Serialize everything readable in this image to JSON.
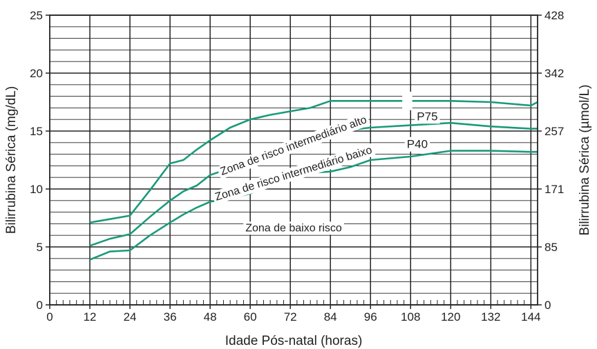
{
  "chart_data": {
    "type": "line",
    "title": "",
    "xlabel": "Idade Pós-natal (horas)",
    "ylabel": "Bilirrubina Sérica (mg/dL)",
    "ylabel_right": "Bilirrubina Sérica (µmol/L)",
    "xlim": [
      0,
      146
    ],
    "ylim": [
      0,
      25
    ],
    "x_ticks": [
      0,
      12,
      24,
      36,
      48,
      60,
      72,
      84,
      96,
      108,
      120,
      132,
      144
    ],
    "x_tick_labels": [
      "0",
      "12",
      "24",
      "36",
      "48",
      "60",
      "72",
      "84",
      "96",
      "108",
      "120",
      "132",
      "144"
    ],
    "y_ticks": [
      0,
      5,
      10,
      15,
      20,
      25
    ],
    "y_tick_labels": [
      "0",
      "5",
      "10",
      "15",
      "20",
      "25"
    ],
    "y_right_ticks": [
      0,
      5,
      10,
      15,
      20,
      25
    ],
    "y_right_tick_labels": [
      "0",
      "85",
      "171",
      "257",
      "342",
      "428"
    ],
    "grid": true,
    "line_color": "#1a9a7a",
    "series": [
      {
        "x": [
          12,
          18,
          24,
          30,
          36,
          40,
          44,
          48,
          54,
          60,
          66,
          72,
          78,
          84,
          90,
          96,
          108,
          120,
          132,
          144,
          146
        ],
        "y": [
          7.1,
          7.4,
          7.7,
          9.9,
          12.2,
          12.5,
          13.4,
          14.2,
          15.3,
          16.0,
          16.4,
          16.7,
          17.0,
          17.6,
          17.6,
          17.6,
          17.6,
          17.6,
          17.5,
          17.2,
          17.5
        ]
      },
      {
        "name": "P75",
        "x": [
          12,
          18,
          24,
          30,
          36,
          40,
          44,
          48,
          54,
          60,
          66,
          72,
          78,
          84,
          90,
          96,
          108,
          120,
          132,
          144,
          146
        ],
        "y": [
          5.1,
          5.7,
          6.1,
          7.6,
          9.0,
          9.8,
          10.3,
          11.2,
          11.8,
          12.4,
          13.0,
          13.6,
          14.2,
          14.8,
          15.1,
          15.3,
          15.5,
          15.7,
          15.4,
          15.2,
          15.2
        ]
      },
      {
        "name": "P40",
        "x": [
          12,
          18,
          24,
          30,
          36,
          40,
          44,
          48,
          54,
          60,
          66,
          72,
          78,
          84,
          90,
          96,
          108,
          120,
          132,
          144,
          146
        ],
        "y": [
          3.9,
          4.6,
          4.7,
          6.0,
          7.1,
          7.8,
          8.4,
          8.9,
          9.2,
          9.6,
          10.6,
          11.3,
          11.4,
          11.5,
          11.9,
          12.5,
          12.8,
          13.3,
          13.3,
          13.2,
          13.2
        ]
      }
    ],
    "annotations": [
      {
        "text": "Zona de risco intermediário alto",
        "x": 73,
        "y": 13.7,
        "angle": -20
      },
      {
        "text": "Zona de risco intermediário baixo",
        "x": 73,
        "y": 11.3,
        "angle": -17
      },
      {
        "text": "Zona de baixo risco",
        "x": 73,
        "y": 6.6,
        "angle": 0
      },
      {
        "text": "P75",
        "x": 113,
        "y": 16.2,
        "angle": 0
      },
      {
        "text": "P40",
        "x": 110,
        "y": 13.8,
        "angle": 0
      }
    ]
  }
}
